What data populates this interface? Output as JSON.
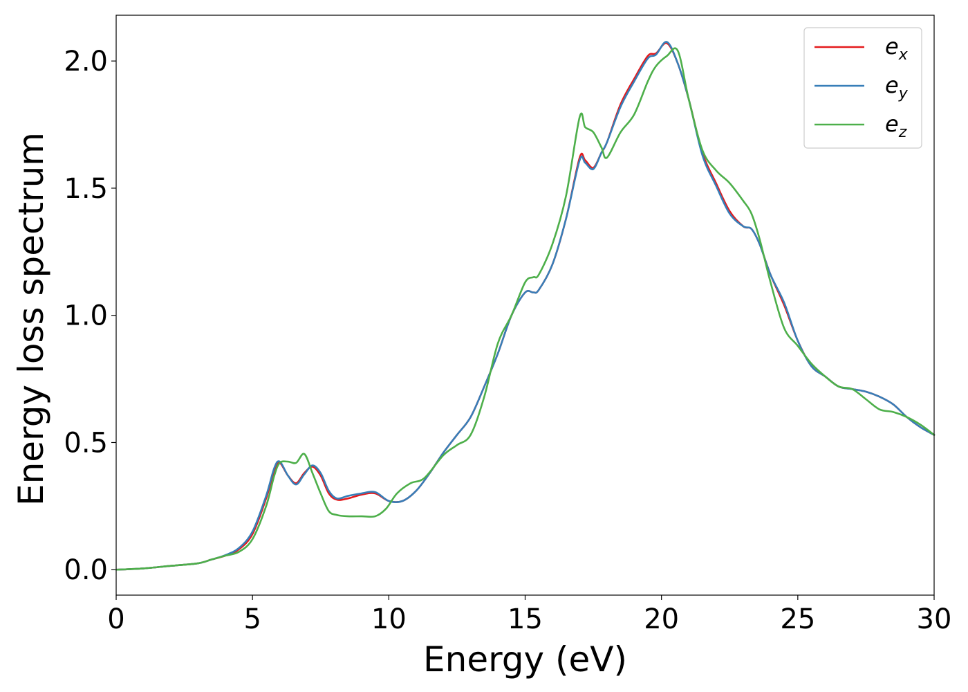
{
  "chart_data": {
    "type": "line",
    "xlabel": "Energy (eV)",
    "ylabel": "Energy loss spectrum",
    "xlim": [
      0,
      30
    ],
    "ylim": [
      -0.1,
      2.18
    ],
    "xticks": [
      "0",
      "5",
      "10",
      "15",
      "20",
      "25",
      "30"
    ],
    "yticks": [
      "0.0",
      "0.5",
      "1.0",
      "1.5",
      "2.0"
    ],
    "grid": false,
    "legend_position": "top-right",
    "series": [
      {
        "name": "e_x",
        "label_main": "e",
        "label_sub": "x",
        "color": "#e41a1c",
        "x": [
          0,
          1,
          2,
          3,
          3.5,
          4,
          4.5,
          5,
          5.5,
          5.8,
          6.0,
          6.3,
          6.6,
          6.9,
          7.2,
          7.5,
          7.8,
          8.1,
          8.5,
          9.0,
          9.5,
          10.0,
          10.5,
          11,
          11.5,
          12,
          12.5,
          13,
          13.5,
          14,
          14.5,
          15,
          15.3,
          15.5,
          16,
          16.5,
          17.0,
          17.2,
          17.5,
          17.8,
          18,
          18.5,
          19,
          19.5,
          19.8,
          20.2,
          20.6,
          21,
          21.5,
          22,
          22.5,
          23,
          23.3,
          23.6,
          24,
          24.5,
          25,
          25.5,
          26,
          26.5,
          27,
          27.5,
          28,
          28.5,
          29,
          29.5,
          30
        ],
        "values": [
          0.0,
          0.005,
          0.015,
          0.025,
          0.04,
          0.055,
          0.08,
          0.14,
          0.28,
          0.39,
          0.42,
          0.37,
          0.34,
          0.38,
          0.405,
          0.37,
          0.3,
          0.275,
          0.28,
          0.295,
          0.3,
          0.27,
          0.27,
          0.31,
          0.38,
          0.46,
          0.53,
          0.6,
          0.72,
          0.85,
          1.0,
          1.09,
          1.09,
          1.1,
          1.2,
          1.38,
          1.62,
          1.61,
          1.58,
          1.64,
          1.68,
          1.83,
          1.93,
          2.02,
          2.03,
          2.07,
          1.99,
          1.85,
          1.64,
          1.52,
          1.41,
          1.35,
          1.34,
          1.28,
          1.16,
          1.04,
          0.9,
          0.8,
          0.76,
          0.72,
          0.71,
          0.7,
          0.68,
          0.65,
          0.6,
          0.56,
          0.53
        ]
      },
      {
        "name": "e_y",
        "label_main": "e",
        "label_sub": "y",
        "color": "#377eb8",
        "x": [
          0,
          1,
          2,
          3,
          3.5,
          4,
          4.5,
          5,
          5.5,
          5.8,
          6.0,
          6.3,
          6.6,
          6.9,
          7.2,
          7.5,
          7.8,
          8.1,
          8.5,
          9.0,
          9.5,
          10.0,
          10.5,
          11,
          11.5,
          12,
          12.5,
          13,
          13.5,
          14,
          14.5,
          15,
          15.3,
          15.5,
          16,
          16.5,
          17.0,
          17.2,
          17.5,
          17.8,
          18,
          18.5,
          19,
          19.5,
          19.8,
          20.2,
          20.6,
          21,
          21.5,
          22,
          22.5,
          23,
          23.3,
          23.6,
          24,
          24.5,
          25,
          25.5,
          26,
          26.5,
          27,
          27.5,
          28,
          28.5,
          29,
          29.5,
          30
        ],
        "values": [
          0.0,
          0.005,
          0.015,
          0.025,
          0.04,
          0.057,
          0.085,
          0.15,
          0.29,
          0.4,
          0.425,
          0.37,
          0.335,
          0.375,
          0.41,
          0.38,
          0.31,
          0.28,
          0.29,
          0.3,
          0.305,
          0.27,
          0.27,
          0.31,
          0.38,
          0.46,
          0.53,
          0.6,
          0.72,
          0.85,
          1.0,
          1.09,
          1.09,
          1.1,
          1.2,
          1.38,
          1.61,
          1.6,
          1.575,
          1.64,
          1.68,
          1.82,
          1.92,
          2.01,
          2.025,
          2.075,
          1.99,
          1.85,
          1.63,
          1.51,
          1.4,
          1.35,
          1.34,
          1.28,
          1.16,
          1.05,
          0.9,
          0.8,
          0.76,
          0.72,
          0.71,
          0.7,
          0.68,
          0.65,
          0.6,
          0.56,
          0.53
        ]
      },
      {
        "name": "e_z",
        "label_main": "e",
        "label_sub": "z",
        "color": "#4daf4a",
        "x": [
          0,
          1,
          2,
          3,
          3.5,
          4,
          4.5,
          5,
          5.5,
          5.8,
          6.0,
          6.3,
          6.6,
          6.9,
          7.2,
          7.5,
          7.8,
          8.1,
          8.5,
          9.0,
          9.5,
          9.9,
          10.3,
          10.8,
          11.3,
          12,
          12.5,
          13,
          13.5,
          14,
          14.5,
          15,
          15.3,
          15.5,
          16,
          16.5,
          17.0,
          17.2,
          17.5,
          17.8,
          18,
          18.5,
          19,
          19.5,
          19.8,
          20.2,
          20.6,
          21,
          21.5,
          22,
          22.5,
          23,
          23.3,
          23.6,
          24,
          24.5,
          25,
          25.5,
          26,
          26.5,
          27,
          27.5,
          28,
          28.5,
          29,
          29.5,
          30
        ],
        "values": [
          0.0,
          0.005,
          0.015,
          0.025,
          0.04,
          0.055,
          0.07,
          0.12,
          0.25,
          0.37,
          0.42,
          0.425,
          0.42,
          0.455,
          0.38,
          0.3,
          0.23,
          0.215,
          0.21,
          0.21,
          0.21,
          0.24,
          0.3,
          0.34,
          0.36,
          0.45,
          0.49,
          0.53,
          0.68,
          0.89,
          1.0,
          1.13,
          1.15,
          1.16,
          1.28,
          1.47,
          1.78,
          1.74,
          1.72,
          1.66,
          1.62,
          1.72,
          1.79,
          1.92,
          1.98,
          2.02,
          2.04,
          1.85,
          1.65,
          1.57,
          1.52,
          1.45,
          1.4,
          1.3,
          1.13,
          0.95,
          0.88,
          0.81,
          0.76,
          0.72,
          0.71,
          0.67,
          0.63,
          0.62,
          0.6,
          0.57,
          0.53
        ]
      }
    ]
  }
}
